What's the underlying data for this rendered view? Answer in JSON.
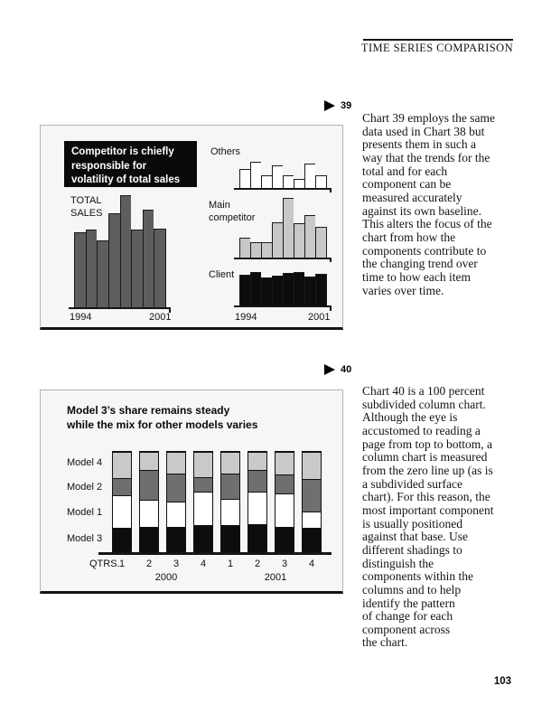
{
  "header": {
    "title": "TIME SERIES COMPARISON"
  },
  "page_number": "103",
  "figure39": {
    "marker": "39",
    "headline_lines": [
      "Competitor is chiefly",
      "responsible for",
      "volatility of total sales"
    ],
    "total_label_lines": [
      "TOTAL",
      "SALES"
    ],
    "others_label": "Others",
    "main_competitor_label_lines": [
      "Main",
      "competitor"
    ],
    "client_label": "Client",
    "caption_lines": [
      "Chart 39 employs the same",
      "data used in Chart 38 but",
      "presents them in such a",
      "way that the trends for the",
      "total and for each",
      "component can be",
      "measured accurately",
      "against its own baseline.",
      "This alters the focus of the",
      "chart from how the",
      "components contribute to",
      "the changing trend over",
      "time to how each item",
      "varies over time."
    ]
  },
  "figure40": {
    "marker": "40",
    "headline_lines": [
      "Model 3’s share remains steady",
      "while the mix for other models varies"
    ],
    "qtrs_label": "QTRS.",
    "caption_lines": [
      "Chart 40 is a 100 percent",
      "subdivided column chart.",
      "Although the eye is",
      "accustomed to reading a",
      "page from top to bottom, a",
      "column chart is measured",
      "from the zero line up (as is",
      "a subdivided surface",
      "chart). For this reason, the",
      "most important component",
      "is usually positioned",
      "against that base. Use",
      "different shadings to",
      "distinguish the",
      "components within the",
      "columns and to help",
      "identify the pattern",
      "of change for each",
      "component across",
      "the chart."
    ]
  },
  "chart_data": [
    {
      "id": "chart-39",
      "type": "bar",
      "title": "Competitor is chiefly responsible for volatility of total sales",
      "x_axis_labels": [
        "1994",
        "2001"
      ],
      "panels": [
        {
          "name": "TOTAL SALES",
          "color": "#5e5e5e",
          "values": [
            82,
            85,
            73,
            103,
            123,
            85,
            107,
            86
          ]
        },
        {
          "name": "Others",
          "color": "#ffffff",
          "values": [
            21,
            29,
            14,
            25,
            14,
            10,
            27,
            14
          ]
        },
        {
          "name": "Main competitor",
          "color": "#c8c8c8",
          "values": [
            22,
            17,
            17,
            39,
            66,
            38,
            47,
            34
          ]
        },
        {
          "name": "Client",
          "color": "#0d0d0d",
          "values": [
            34,
            37,
            31,
            33,
            36,
            37,
            32,
            35
          ]
        }
      ]
    },
    {
      "id": "chart-40",
      "type": "stacked-column-100",
      "title": "Model 3’s share remains steady while the mix for other models varies",
      "categories": [
        "1",
        "2",
        "3",
        "4",
        "1",
        "2",
        "3",
        "4"
      ],
      "year_groups": [
        "2000",
        "2001"
      ],
      "ylim": [
        0,
        100
      ],
      "legend_position": "left-of-columns",
      "series": [
        {
          "name": "Model 3",
          "color": "#0d0d0d",
          "values": [
            24,
            25,
            25,
            26,
            26,
            27,
            25,
            24
          ]
        },
        {
          "name": "Model 1",
          "color": "#ffffff",
          "values": [
            32,
            27,
            25,
            34,
            27,
            33,
            33,
            16
          ]
        },
        {
          "name": "Model 2",
          "color": "#6f6f6f",
          "values": [
            18,
            30,
            28,
            15,
            25,
            22,
            19,
            33
          ]
        },
        {
          "name": "Model 4",
          "color": "#c9c9c9",
          "values": [
            26,
            18,
            22,
            25,
            22,
            18,
            23,
            27
          ]
        }
      ]
    }
  ]
}
